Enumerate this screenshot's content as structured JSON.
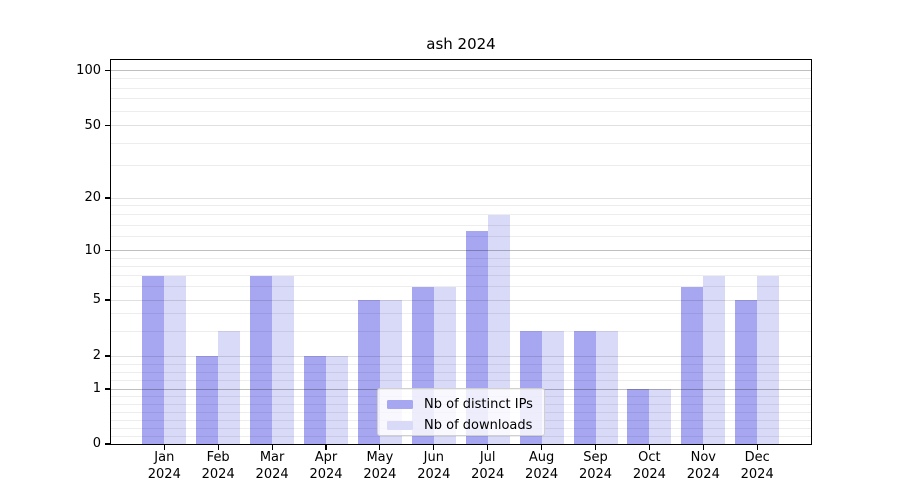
{
  "chart_data": {
    "type": "bar",
    "title": "ash 2024",
    "categories": [
      "Jan",
      "Feb",
      "Mar",
      "Apr",
      "May",
      "Jun",
      "Jul",
      "Aug",
      "Sep",
      "Oct",
      "Nov",
      "Dec"
    ],
    "x_tick_second_line": "2024",
    "series": [
      {
        "name": "Nb of distinct IPs",
        "color": "#a6a6f1",
        "values": [
          7,
          2,
          7,
          2,
          5,
          6,
          13,
          3,
          3,
          1,
          6,
          5
        ]
      },
      {
        "name": "Nb of downloads",
        "color": "#d9d9f8",
        "values": [
          7,
          3,
          7,
          2,
          5,
          6,
          16,
          3,
          3,
          1,
          7,
          7
        ]
      }
    ],
    "xlabel": "",
    "ylabel": "",
    "y_tick_labels": [
      "0",
      "1",
      "2",
      "5",
      "10",
      "20",
      "50",
      "100"
    ],
    "y_tick_values": [
      0,
      1,
      2,
      5,
      10,
      20,
      50,
      100
    ],
    "y_major_values": [
      1,
      10,
      100
    ],
    "y_scale": "log",
    "ylim": [
      0,
      115
    ],
    "grid": true,
    "legend_position": "lower center",
    "colors": {
      "bar_distinct_ips": "#a6a6f1",
      "bar_downloads": "#d9d9f8",
      "grid_major": "rgba(0,0,0,0.25)",
      "grid_labeled_minor": "rgba(0,0,0,0.12)",
      "grid_minor": "rgba(0,0,0,0.07)",
      "spine": "#000000",
      "text": "#000000",
      "legend_bg": "rgba(255,255,255,0.8)",
      "legend_border": "#d0d0d0"
    }
  }
}
